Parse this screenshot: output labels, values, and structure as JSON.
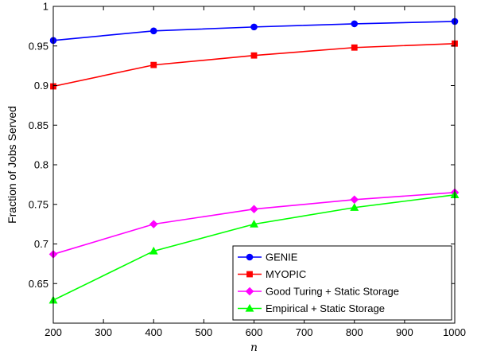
{
  "chart_data": {
    "type": "line",
    "title": "",
    "xlabel": "n",
    "ylabel": "Fraction of Jobs Served",
    "xlim": [
      200,
      1000
    ],
    "ylim": [
      0.6,
      1.0
    ],
    "x_ticks": [
      200,
      300,
      400,
      500,
      600,
      700,
      800,
      900,
      1000
    ],
    "y_ticks": [
      0.6,
      0.65,
      0.7,
      0.75,
      0.8,
      0.85,
      0.9,
      0.95,
      1.0
    ],
    "x_tick_labels": [
      "200",
      "300",
      "400",
      "500",
      "600",
      "700",
      "800",
      "900",
      "1000"
    ],
    "y_tick_labels": [
      "",
      "0.65",
      "0.7",
      "0.75",
      "0.8",
      "0.85",
      "0.9",
      "0.95",
      "1"
    ],
    "grid": false,
    "legend_position": "bottom-right",
    "x": [
      200,
      400,
      600,
      800,
      1000
    ],
    "series": [
      {
        "name": "GENIE",
        "color": "#0000ff",
        "marker": "circle",
        "values": [
          0.957,
          0.969,
          0.974,
          0.978,
          0.981
        ]
      },
      {
        "name": "MYOPIC",
        "color": "#ff0000",
        "marker": "square",
        "values": [
          0.899,
          0.926,
          0.938,
          0.948,
          0.953
        ]
      },
      {
        "name": "Good Turing + Static Storage",
        "color": "#ff00ff",
        "marker": "diamond",
        "values": [
          0.687,
          0.725,
          0.744,
          0.756,
          0.765
        ]
      },
      {
        "name": "Empirical + Static Storage",
        "color": "#00ff00",
        "marker": "triangle",
        "values": [
          0.629,
          0.691,
          0.725,
          0.746,
          0.762
        ]
      }
    ]
  }
}
